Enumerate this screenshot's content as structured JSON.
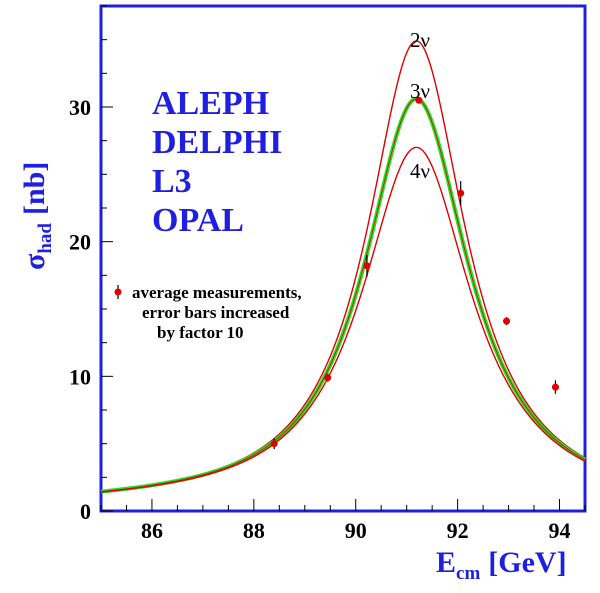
{
  "chart_data": {
    "type": "line",
    "xlabel_main": "E",
    "xlabel_sub": "cm",
    "xlabel_unit": "[GeV]",
    "ylabel_main": "σ",
    "ylabel_sub": "had",
    "ylabel_unit": "[nb]",
    "xlim": [
      85,
      94.5
    ],
    "ylim": [
      0,
      37.5
    ],
    "x_ticks": [
      86,
      88,
      90,
      92,
      94
    ],
    "y_ticks": [
      0,
      10,
      20,
      30
    ],
    "experiments": [
      "ALEPH",
      "DELPHI",
      "L3",
      "OPAL"
    ],
    "legend": {
      "line1": "average measurements,",
      "line2": "error bars increased",
      "line3": "by factor 10"
    },
    "series": [
      {
        "name": "2ν",
        "color": "#e00000",
        "peak": 34.9
      },
      {
        "name": "3ν",
        "color": "#22e022",
        "peak": 30.6
      },
      {
        "name": "4ν",
        "color": "#e00000",
        "peak": 27.0
      }
    ],
    "curve_model": {
      "mz": 91.19,
      "gamma_ref": 2.5,
      "low_energy_x": 85,
      "low_energy_y": 1.25
    },
    "measurements": [
      {
        "x": 88.4,
        "y": 5.0,
        "err": 0.4
      },
      {
        "x": 89.45,
        "y": 9.9,
        "err": 0.3
      },
      {
        "x": 90.22,
        "y": 18.2,
        "err": 0.8
      },
      {
        "x": 91.24,
        "y": 30.5,
        "err": 0.2
      },
      {
        "x": 92.06,
        "y": 23.6,
        "err": 0.9
      },
      {
        "x": 92.96,
        "y": 14.1,
        "err": 0.3
      },
      {
        "x": 93.92,
        "y": 9.2,
        "err": 0.5
      }
    ],
    "colors": {
      "frame": "#1f1fe0",
      "text_accent": "#1f1fe0",
      "curve_red": "#e00000",
      "curve_green": "#22e022",
      "marker": "#e00000",
      "errorbar": "#000000"
    }
  }
}
